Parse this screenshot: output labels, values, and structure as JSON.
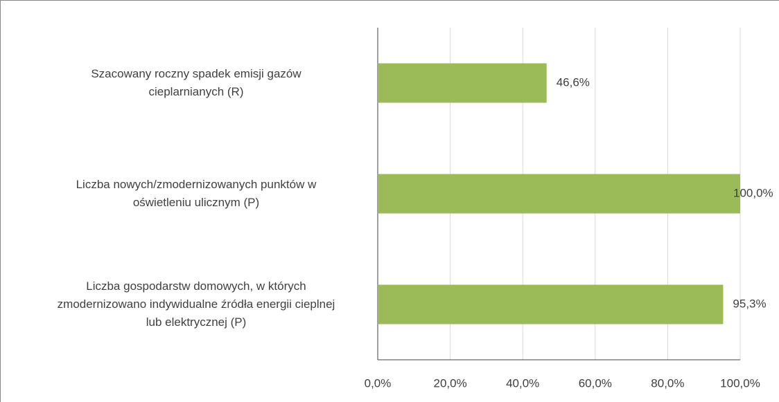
{
  "chart_data": {
    "type": "bar",
    "orientation": "horizontal",
    "categories": [
      "Szacowany roczny spadek emisji gazów\ncieplarnianych (R)",
      "Liczba nowych/zmodernizowanych punktów w\noświetleniu ulicznym (P)",
      "Liczba gospodarstw domowych, w których\nzmodernizowano indywidualne źródła energii cieplnej\nlub elektrycznej (P)"
    ],
    "values": [
      46.6,
      100,
      95.3
    ],
    "value_labels": [
      "46,6%",
      "100,0%",
      "95,3%"
    ],
    "color": "#9bbb59",
    "xlim": [
      0,
      100
    ],
    "xticks": [
      {
        "value": 0,
        "label": "0,0%"
      },
      {
        "value": 20,
        "label": "20,0%"
      },
      {
        "value": 40,
        "label": "40,0%"
      },
      {
        "value": 60,
        "label": "60,0%"
      },
      {
        "value": 80,
        "label": "80,0%"
      },
      {
        "value": 100,
        "label": "100,0%"
      }
    ],
    "grid": true
  }
}
